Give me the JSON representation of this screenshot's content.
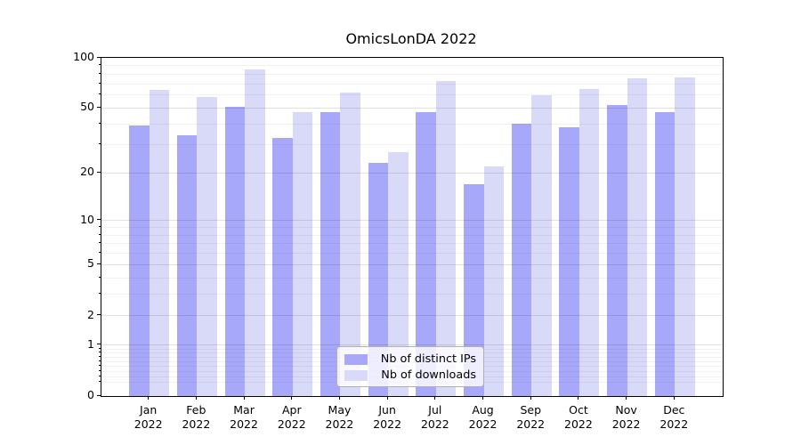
{
  "chart_data": {
    "type": "bar",
    "title": "OmicsLonDA 2022",
    "year_label": "2022",
    "categories": [
      "Jan",
      "Feb",
      "Mar",
      "Apr",
      "May",
      "Jun",
      "Jul",
      "Aug",
      "Sep",
      "Oct",
      "Nov",
      "Dec"
    ],
    "series": [
      {
        "name": "Nb of distinct IPs",
        "color": "#a8a8fb",
        "values": [
          39,
          34,
          51,
          33,
          47,
          23,
          47,
          17,
          40,
          38,
          52,
          47
        ]
      },
      {
        "name": "Nb of downloads",
        "color": "#d9d9f8",
        "values": [
          64,
          58,
          85,
          47,
          62,
          27,
          73,
          22,
          60,
          65,
          75,
          76
        ]
      }
    ],
    "yscale": "log1p",
    "ylim": [
      0,
      100
    ],
    "yticks": [
      0,
      1,
      2,
      5,
      10,
      20,
      50,
      100
    ],
    "minor_yticks": [
      0.2,
      0.3,
      0.4,
      0.5,
      0.6,
      0.7,
      0.8,
      0.9,
      3,
      4,
      6,
      7,
      8,
      9,
      30,
      40,
      60,
      70,
      80,
      90
    ],
    "grid": true,
    "legend_position": "lower center"
  }
}
